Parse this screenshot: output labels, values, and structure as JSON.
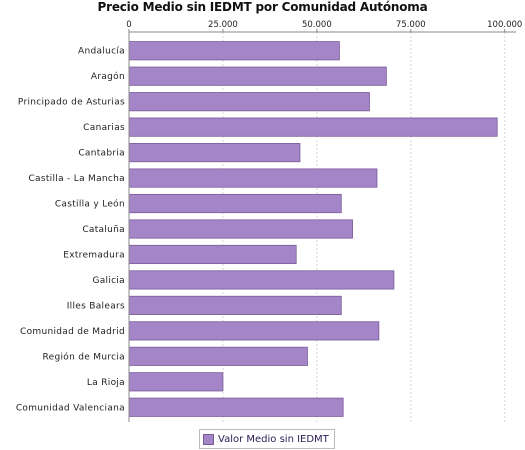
{
  "chart_data": {
    "type": "bar",
    "orientation": "horizontal",
    "title": "Precio Medio sin IEDMT por Comunidad Autónoma",
    "categories": [
      "Andalucía",
      "Aragón",
      "Principado de Asturias",
      "Canarias",
      "Cantabria",
      "Castilla - La Mancha",
      "Castilla y León",
      "Cataluña",
      "Extremadura",
      "Galicia",
      "Illes Balears",
      "Comunidad de Madrid",
      "Región de Murcia",
      "La Rioja",
      "Comunidad Valenciana"
    ],
    "series": [
      {
        "name": "Valor Medio sin IEDMT",
        "values": [
          56000,
          68500,
          64000,
          98000,
          45500,
          66000,
          56500,
          59500,
          44500,
          70500,
          56500,
          66500,
          47500,
          25000,
          57000
        ],
        "color": "#a485c8"
      }
    ],
    "xlim": [
      0,
      103000
    ],
    "x_ticks": [
      0,
      25000,
      50000,
      75000,
      100000
    ],
    "x_tick_labels": [
      "0",
      "25.000",
      "50.000",
      "75.000",
      "100.000"
    ],
    "axis_position": "top",
    "grid": true,
    "legend_position": "bottom"
  }
}
